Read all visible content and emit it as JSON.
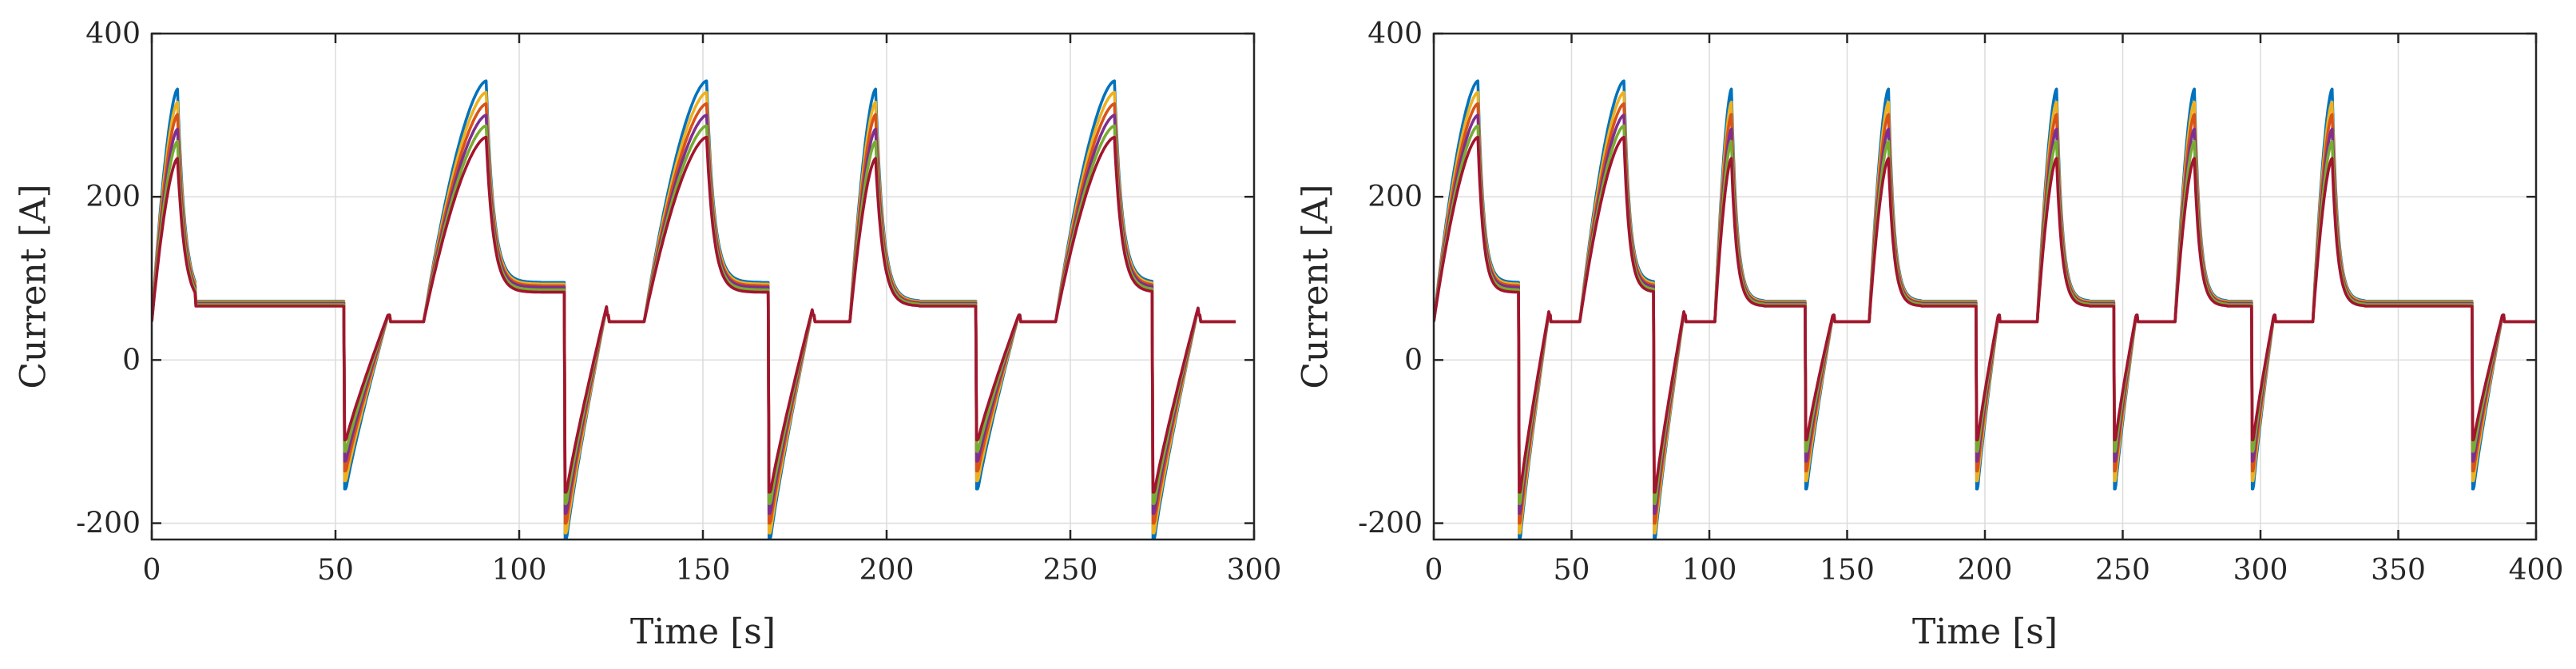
{
  "colors": [
    "#0072BD",
    "#EDB120",
    "#D95319",
    "#7E2F8E",
    "#77AC30",
    "#A2142F"
  ],
  "chart_data": [
    {
      "type": "line",
      "title": "",
      "xlabel": "Time [s]",
      "ylabel": "Current [A]",
      "xlim": [
        0,
        300
      ],
      "ylim": [
        -220,
        400
      ],
      "xticks": [
        0,
        50,
        100,
        150,
        200,
        250,
        300
      ],
      "yticks": [
        -200,
        0,
        200,
        400
      ],
      "xtick_labels": [
        "0",
        "50",
        "100",
        "150",
        "200",
        "250",
        "300"
      ],
      "ytick_labels": [
        "-200",
        "0",
        "200",
        "400"
      ],
      "grid": true,
      "end_time": 295,
      "segments": [
        {
          "type": "pulse",
          "start": 0,
          "end": 7,
          "dur": 12,
          "peaks": [
            332,
            316,
            301,
            283,
            268,
            247
          ],
          "base": [
            72,
            71,
            70,
            69,
            68,
            66
          ]
        },
        {
          "type": "plateau",
          "start": 12,
          "end": 52.5,
          "levels": [
            72,
            71,
            70,
            69,
            68,
            66
          ]
        },
        {
          "type": "dip",
          "start": 52.5,
          "end": 64.5,
          "mins": [
            -158,
            -148,
            -136,
            -124,
            -112,
            -98
          ],
          "rec": 58
        },
        {
          "type": "rest",
          "start": 64.5,
          "end": 74
        },
        {
          "type": "pulse",
          "start": 74,
          "end": 91,
          "dur": 15,
          "peaks": [
            342,
            328,
            314,
            300,
            287,
            273
          ],
          "base": [
            95,
            93,
            91,
            89,
            86,
            83
          ]
        },
        {
          "type": "plateau",
          "start": 106,
          "end": 112.5,
          "levels": [
            95,
            93,
            91,
            89,
            86,
            83
          ]
        },
        {
          "type": "dip",
          "start": 112.5,
          "end": 124,
          "mins": [
            -220,
            -212,
            -200,
            -188,
            -176,
            -162
          ],
          "rec": 70
        },
        {
          "type": "rest",
          "start": 124,
          "end": 134
        },
        {
          "type": "pulse",
          "start": 134,
          "end": 151,
          "dur": 15,
          "peaks": [
            342,
            328,
            314,
            300,
            287,
            273
          ],
          "base": [
            95,
            93,
            91,
            89,
            86,
            83
          ]
        },
        {
          "type": "plateau",
          "start": 166,
          "end": 168,
          "levels": [
            95,
            93,
            91,
            89,
            86,
            83
          ]
        },
        {
          "type": "dip",
          "start": 168,
          "end": 180,
          "mins": [
            -220,
            -212,
            -200,
            -188,
            -176,
            -162
          ],
          "rec": 66
        },
        {
          "type": "rest",
          "start": 180,
          "end": 190
        },
        {
          "type": "pulse",
          "start": 190,
          "end": 197,
          "dur": 12,
          "peaks": [
            332,
            316,
            301,
            283,
            268,
            247
          ],
          "base": [
            72,
            71,
            70,
            69,
            68,
            66
          ]
        },
        {
          "type": "plateau",
          "start": 209,
          "end": 224.5,
          "levels": [
            72,
            71,
            70,
            69,
            68,
            66
          ]
        },
        {
          "type": "dip",
          "start": 224.5,
          "end": 236,
          "mins": [
            -158,
            -148,
            -136,
            -124,
            -112,
            -98
          ],
          "rec": 56
        },
        {
          "type": "rest",
          "start": 236,
          "end": 246
        },
        {
          "type": "pulse",
          "start": 246,
          "end": 262,
          "dur": 10,
          "peaks": [
            342,
            328,
            314,
            300,
            287,
            273
          ],
          "base": [
            95,
            93,
            91,
            89,
            86,
            83
          ]
        },
        {
          "type": "dip",
          "start": 272.5,
          "end": 285,
          "mins": [
            -220,
            -212,
            -200,
            -188,
            -176,
            -162
          ],
          "rec": 68
        },
        {
          "type": "rest",
          "start": 285,
          "end": 295
        }
      ]
    },
    {
      "type": "line",
      "title": "",
      "xlabel": "Time [s]",
      "ylabel": "Current [A]",
      "xlim": [
        0,
        400
      ],
      "ylim": [
        -220,
        400
      ],
      "xticks": [
        0,
        50,
        100,
        150,
        200,
        250,
        300,
        350,
        400
      ],
      "yticks": [
        -200,
        0,
        200,
        400
      ],
      "xtick_labels": [
        "0",
        "50",
        "100",
        "150",
        "200",
        "250",
        "300",
        "350",
        "400"
      ],
      "ytick_labels": [
        "-200",
        "0",
        "200",
        "400"
      ],
      "grid": true,
      "end_time": 400,
      "segments": [
        {
          "type": "pulse",
          "start": 0,
          "end": 16,
          "dur": 15,
          "peaks": [
            342,
            328,
            314,
            300,
            287,
            273
          ],
          "base": [
            95,
            93,
            91,
            89,
            86,
            83
          ]
        },
        {
          "type": "dip",
          "start": 31,
          "end": 42,
          "mins": [
            -220,
            -212,
            -200,
            -188,
            -176,
            -162
          ],
          "rec": 64
        },
        {
          "type": "rest",
          "start": 42,
          "end": 53
        },
        {
          "type": "pulse",
          "start": 53,
          "end": 69,
          "dur": 11,
          "peaks": [
            342,
            328,
            314,
            300,
            287,
            273
          ],
          "base": [
            95,
            93,
            91,
            89,
            86,
            83
          ]
        },
        {
          "type": "dip",
          "start": 80,
          "end": 91,
          "mins": [
            -220,
            -212,
            -200,
            -188,
            -176,
            -162
          ],
          "rec": 64
        },
        {
          "type": "rest",
          "start": 91,
          "end": 102
        },
        {
          "type": "pulse",
          "start": 102,
          "end": 108,
          "dur": 12,
          "peaks": [
            332,
            316,
            301,
            283,
            268,
            247
          ],
          "base": [
            72,
            71,
            70,
            69,
            68,
            66
          ]
        },
        {
          "type": "plateau",
          "start": 120,
          "end": 135,
          "levels": [
            72,
            71,
            70,
            69,
            68,
            66
          ]
        },
        {
          "type": "dip",
          "start": 135,
          "end": 145,
          "mins": [
            -158,
            -148,
            -136,
            -124,
            -112,
            -98
          ],
          "rec": 58
        },
        {
          "type": "rest",
          "start": 145,
          "end": 158
        },
        {
          "type": "pulse",
          "start": 158,
          "end": 165,
          "dur": 12,
          "peaks": [
            332,
            316,
            301,
            283,
            268,
            247
          ],
          "base": [
            72,
            71,
            70,
            69,
            68,
            66
          ]
        },
        {
          "type": "plateau",
          "start": 177,
          "end": 197,
          "levels": [
            72,
            71,
            70,
            69,
            68,
            66
          ]
        },
        {
          "type": "dip",
          "start": 197,
          "end": 205,
          "mins": [
            -158,
            -148,
            -136,
            -124,
            -112,
            -98
          ],
          "rec": 58
        },
        {
          "type": "rest",
          "start": 205,
          "end": 219
        },
        {
          "type": "pulse",
          "start": 219,
          "end": 226,
          "dur": 12,
          "peaks": [
            332,
            316,
            301,
            283,
            268,
            247
          ],
          "base": [
            72,
            71,
            70,
            69,
            68,
            66
          ]
        },
        {
          "type": "plateau",
          "start": 238,
          "end": 247,
          "levels": [
            72,
            71,
            70,
            69,
            68,
            66
          ]
        },
        {
          "type": "dip",
          "start": 247,
          "end": 255,
          "mins": [
            -158,
            -148,
            -136,
            -124,
            -112,
            -98
          ],
          "rec": 58
        },
        {
          "type": "rest",
          "start": 255,
          "end": 269
        },
        {
          "type": "pulse",
          "start": 269,
          "end": 276,
          "dur": 12,
          "peaks": [
            332,
            316,
            301,
            283,
            268,
            247
          ],
          "base": [
            72,
            71,
            70,
            69,
            68,
            66
          ]
        },
        {
          "type": "plateau",
          "start": 288,
          "end": 297,
          "levels": [
            72,
            71,
            70,
            69,
            68,
            66
          ]
        },
        {
          "type": "dip",
          "start": 297,
          "end": 305,
          "mins": [
            -158,
            -148,
            -136,
            -124,
            -112,
            -98
          ],
          "rec": 58
        },
        {
          "type": "rest",
          "start": 305,
          "end": 319
        },
        {
          "type": "pulse",
          "start": 319,
          "end": 326,
          "dur": 12,
          "peaks": [
            332,
            316,
            301,
            283,
            268,
            247
          ],
          "base": [
            72,
            71,
            70,
            69,
            68,
            66
          ]
        },
        {
          "type": "plateau",
          "start": 338,
          "end": 377,
          "levels": [
            72,
            71,
            70,
            69,
            68,
            66
          ]
        },
        {
          "type": "dip",
          "start": 377,
          "end": 388,
          "mins": [
            -158,
            -148,
            -136,
            -124,
            -112,
            -98
          ],
          "rec": 58
        },
        {
          "type": "rest",
          "start": 388,
          "end": 400
        }
      ]
    }
  ]
}
